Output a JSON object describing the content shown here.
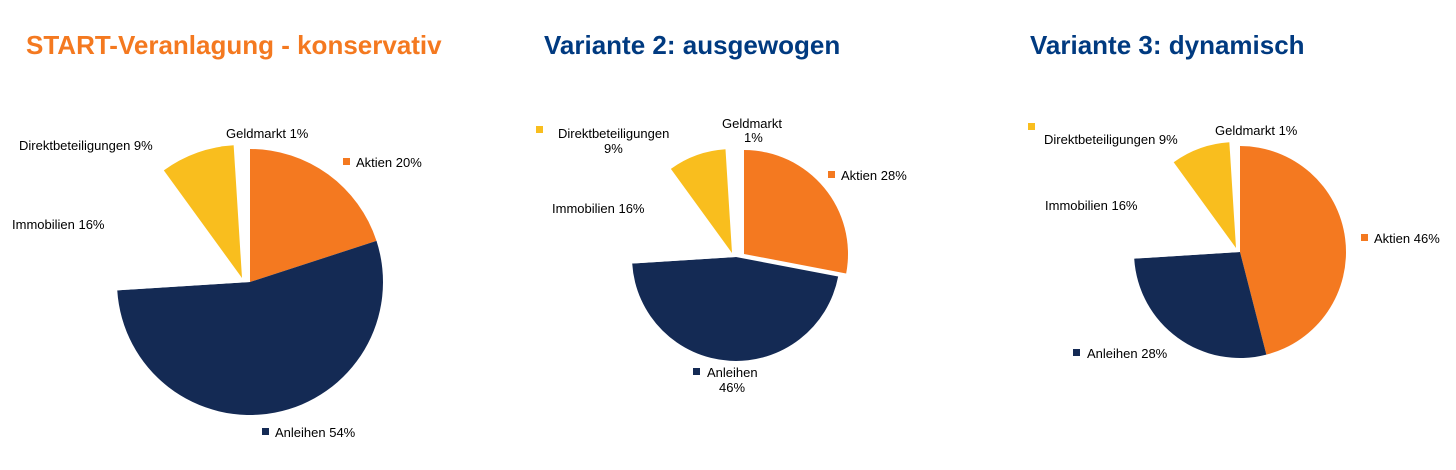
{
  "colors": {
    "Aktien": "#F47920",
    "Anleihen": "#142A54",
    "Immobilien": "#FFFFFF",
    "Direktbeteiligungen": "#F9BE1E",
    "Geldmarkt": "#FFFFFF",
    "title_orange": "#F47920",
    "title_blue": "#003A80"
  },
  "chart_data": [
    {
      "type": "pie",
      "title": "START-Veranlagung - konservativ",
      "categories": [
        "Aktien",
        "Anleihen",
        "Immobilien",
        "Direktbeteiligungen",
        "Geldmarkt"
      ],
      "values": [
        20,
        54,
        16,
        9,
        1
      ],
      "labels": [
        "Aktien 20%",
        "Anleihen 54%",
        "Immobilien 16%",
        "Direktbeteiligungen 9%",
        "Geldmarkt 1%"
      ]
    },
    {
      "type": "pie",
      "title": "Variante 2: ausgewogen",
      "categories": [
        "Aktien",
        "Anleihen",
        "Immobilien",
        "Direktbeteiligungen",
        "Geldmarkt"
      ],
      "values": [
        28,
        46,
        16,
        9,
        1
      ],
      "labels": [
        "Aktien 28%",
        "Anleihen 46%",
        "Immobilien 16%",
        "Direktbeteiligungen 9%",
        "Geldmarkt 1%"
      ]
    },
    {
      "type": "pie",
      "title": "Variante 3: dynamisch",
      "categories": [
        "Aktien",
        "Anleihen",
        "Immobilien",
        "Direktbeteiligungen",
        "Geldmarkt"
      ],
      "values": [
        46,
        28,
        16,
        9,
        1
      ],
      "labels": [
        "Aktien 46%",
        "Anleihen 28%",
        "Immobilien 16%",
        "Direktbeteiligungen 9%",
        "Geldmarkt 1%"
      ]
    }
  ]
}
